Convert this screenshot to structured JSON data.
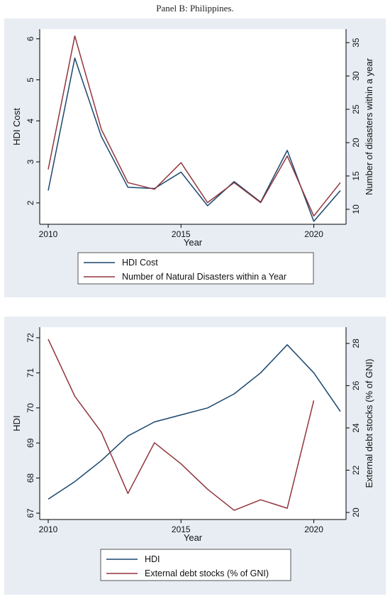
{
  "caption": "Panel B: Philippines.",
  "colors": {
    "navy": "#1a476f",
    "maroon": "#90353b",
    "panel_bg": "#e7edf3"
  },
  "chart_data": [
    {
      "type": "line",
      "x": [
        2010,
        2011,
        2012,
        2013,
        2014,
        2015,
        2016,
        2017,
        2018,
        2019,
        2020,
        2021
      ],
      "xlabel": "Year",
      "xticks": [
        2010,
        2015,
        2020
      ],
      "ylabel": "HDI Cost",
      "ylabel_right": "Number of disasters within a year",
      "ylim": [
        1.6,
        6.15
      ],
      "ylim_right": [
        8.5,
        36.5
      ],
      "yticks": [
        2,
        3,
        4,
        5,
        6
      ],
      "yticks_right": [
        10,
        15,
        20,
        25,
        30,
        35
      ],
      "series": [
        {
          "name": "HDI Cost",
          "axis": "left",
          "color": "#1a476f",
          "values": [
            2.3,
            5.53,
            3.62,
            2.38,
            2.35,
            2.75,
            1.93,
            2.52,
            2.02,
            3.28,
            1.55,
            2.3
          ]
        },
        {
          "name": "Number of Natural Disasters within a Year",
          "axis": "right",
          "color": "#90353b",
          "values": [
            16,
            36,
            22,
            14,
            13,
            17,
            11,
            14,
            11,
            18,
            9,
            14
          ]
        }
      ],
      "legend": "below"
    },
    {
      "type": "line",
      "x": [
        2010,
        2011,
        2012,
        2013,
        2014,
        2015,
        2016,
        2017,
        2018,
        2019,
        2020,
        2021
      ],
      "xlabel": "Year",
      "xticks": [
        2010,
        2015,
        2020
      ],
      "ylabel": "HDI",
      "ylabel_right": "External debt stocks (% of GNI)",
      "ylim": [
        66.9,
        72.2
      ],
      "ylim_right": [
        19.8,
        28.6
      ],
      "yticks": [
        67,
        68,
        69,
        70,
        71,
        72
      ],
      "yticks_right": [
        20,
        22,
        24,
        26,
        28
      ],
      "series": [
        {
          "name": "HDI",
          "axis": "left",
          "color": "#1a476f",
          "values": [
            67.4,
            67.9,
            68.5,
            69.2,
            69.6,
            69.8,
            70.0,
            70.4,
            71.0,
            71.8,
            71.0,
            69.9
          ]
        },
        {
          "name": "External debt stocks (% of GNI)",
          "axis": "right",
          "color": "#90353b",
          "values": [
            28.2,
            25.5,
            23.8,
            20.9,
            23.3,
            22.3,
            21.1,
            20.1,
            20.6,
            20.2,
            25.3,
            null
          ]
        }
      ],
      "legend": "below"
    }
  ]
}
